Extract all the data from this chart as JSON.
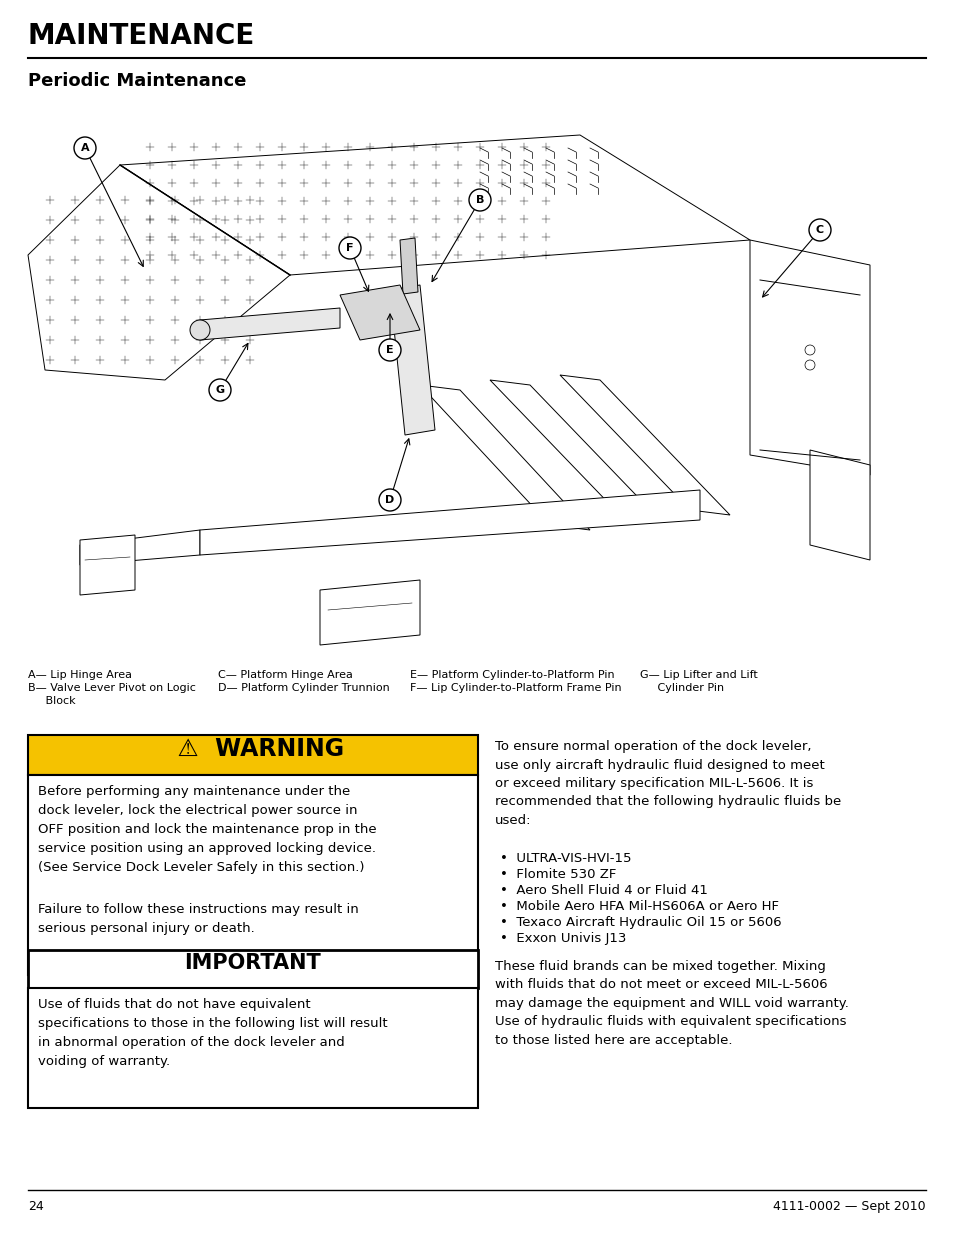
{
  "title": "MAINTENANCE",
  "subtitle": "Periodic Maintenance",
  "page_number": "24",
  "doc_number": "4111-0002 — Sept 2010",
  "warning_title": "  ⚠  WARNING",
  "warning_text1": "Before performing any maintenance under the\ndock leveler, lock the electrical power source in\nOFF position and lock the maintenance prop in the\nservice position using an approved locking device.\n(See Service Dock Leveler Safely in this section.)",
  "warning_text2": "Failure to follow these instructions may result in\nserious personal injury or death.",
  "important_title": "IMPORTANT",
  "important_text": "Use of fluids that do not have equivalent\nspecifications to those in the following list will result\nin abnormal operation of the dock leveler and\nvoiding of warranty.",
  "right_text1": "To ensure normal operation of the dock leveler,\nuse only aircraft hydraulic fluid designed to meet\nor exceed military specification MIL-L-5606. It is\nrecommended that the following hydraulic fluids be\nused:",
  "bullet_items": [
    "ULTRA-VIS-HVI-15",
    "Flomite 530 ZF",
    "Aero Shell Fluid 4 or Fluid 41",
    "Mobile Aero HFA Mil-HS606A or Aero HF",
    "Texaco Aircraft Hydraulic Oil 15 or 5606",
    "Exxon Univis J13"
  ],
  "right_text2": "These fluid brands can be mixed together. Mixing\nwith fluids that do not meet or exceed MIL-L-5606\nmay damage the equipment and WILL void warranty.\nUse of hydraulic fluids with equivalent specifications\nto those listed here are acceptable.",
  "legend_col1_line1": "A— Lip Hinge Area",
  "legend_col1_line2": "B— Valve Lever Pivot on Logic",
  "legend_col1_line3": "     Block",
  "legend_col2_line1": "C— Platform Hinge Area",
  "legend_col2_line2": "D— Platform Cylinder Trunnion",
  "legend_col3_line1": "E— Platform Cylinder-to-Platform Pin",
  "legend_col3_line2": "F— Lip Cylinder-to-Platform Frame Pin",
  "legend_col4_line1": "G— Lip Lifter and Lift",
  "legend_col4_line2": "     Cylinder Pin",
  "warning_bg": "#f5c200",
  "warning_border": "#000000",
  "important_border": "#000000",
  "important_bg": "#ffffff",
  "text_color": "#000000",
  "bg_color": "#ffffff",
  "font_size_title": 20,
  "font_size_subtitle": 13,
  "font_size_body": 9.5,
  "font_size_warning_title": 17,
  "font_size_important_title": 15,
  "font_size_legend": 8,
  "font_size_footer": 9
}
